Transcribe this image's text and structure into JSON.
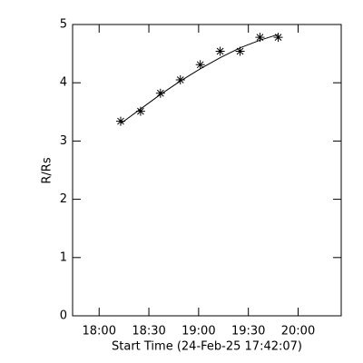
{
  "chart_data": {
    "type": "scatter",
    "x_label": "Start Time (24-Feb-25 17:42:07)",
    "y_label": "R/Rs",
    "xlim": [
      1064,
      1226
    ],
    "xticks": [
      {
        "value": 1080,
        "label": "18:00"
      },
      {
        "value": 1110,
        "label": "18:30"
      },
      {
        "value": 1140,
        "label": "19:00"
      },
      {
        "value": 1170,
        "label": "19:30"
      },
      {
        "value": 1200,
        "label": "20:00"
      }
    ],
    "ylim": [
      0,
      5
    ],
    "yticks": [
      0,
      1,
      2,
      3,
      4,
      5
    ],
    "x": [
      1093,
      1105,
      1117,
      1129,
      1141,
      1153,
      1165,
      1177,
      1188
    ],
    "series": [
      {
        "values": [
          3.34,
          3.51,
          3.82,
          4.05,
          4.31,
          4.54,
          4.54,
          4.78,
          4.78
        ],
        "color": "#000000",
        "marker": "asterisk"
      },
      {
        "values": [
          3.3,
          3.55,
          3.8,
          4.03,
          4.24,
          4.43,
          4.6,
          4.73,
          4.83
        ],
        "color": "#000000",
        "marker": "line"
      }
    ]
  }
}
